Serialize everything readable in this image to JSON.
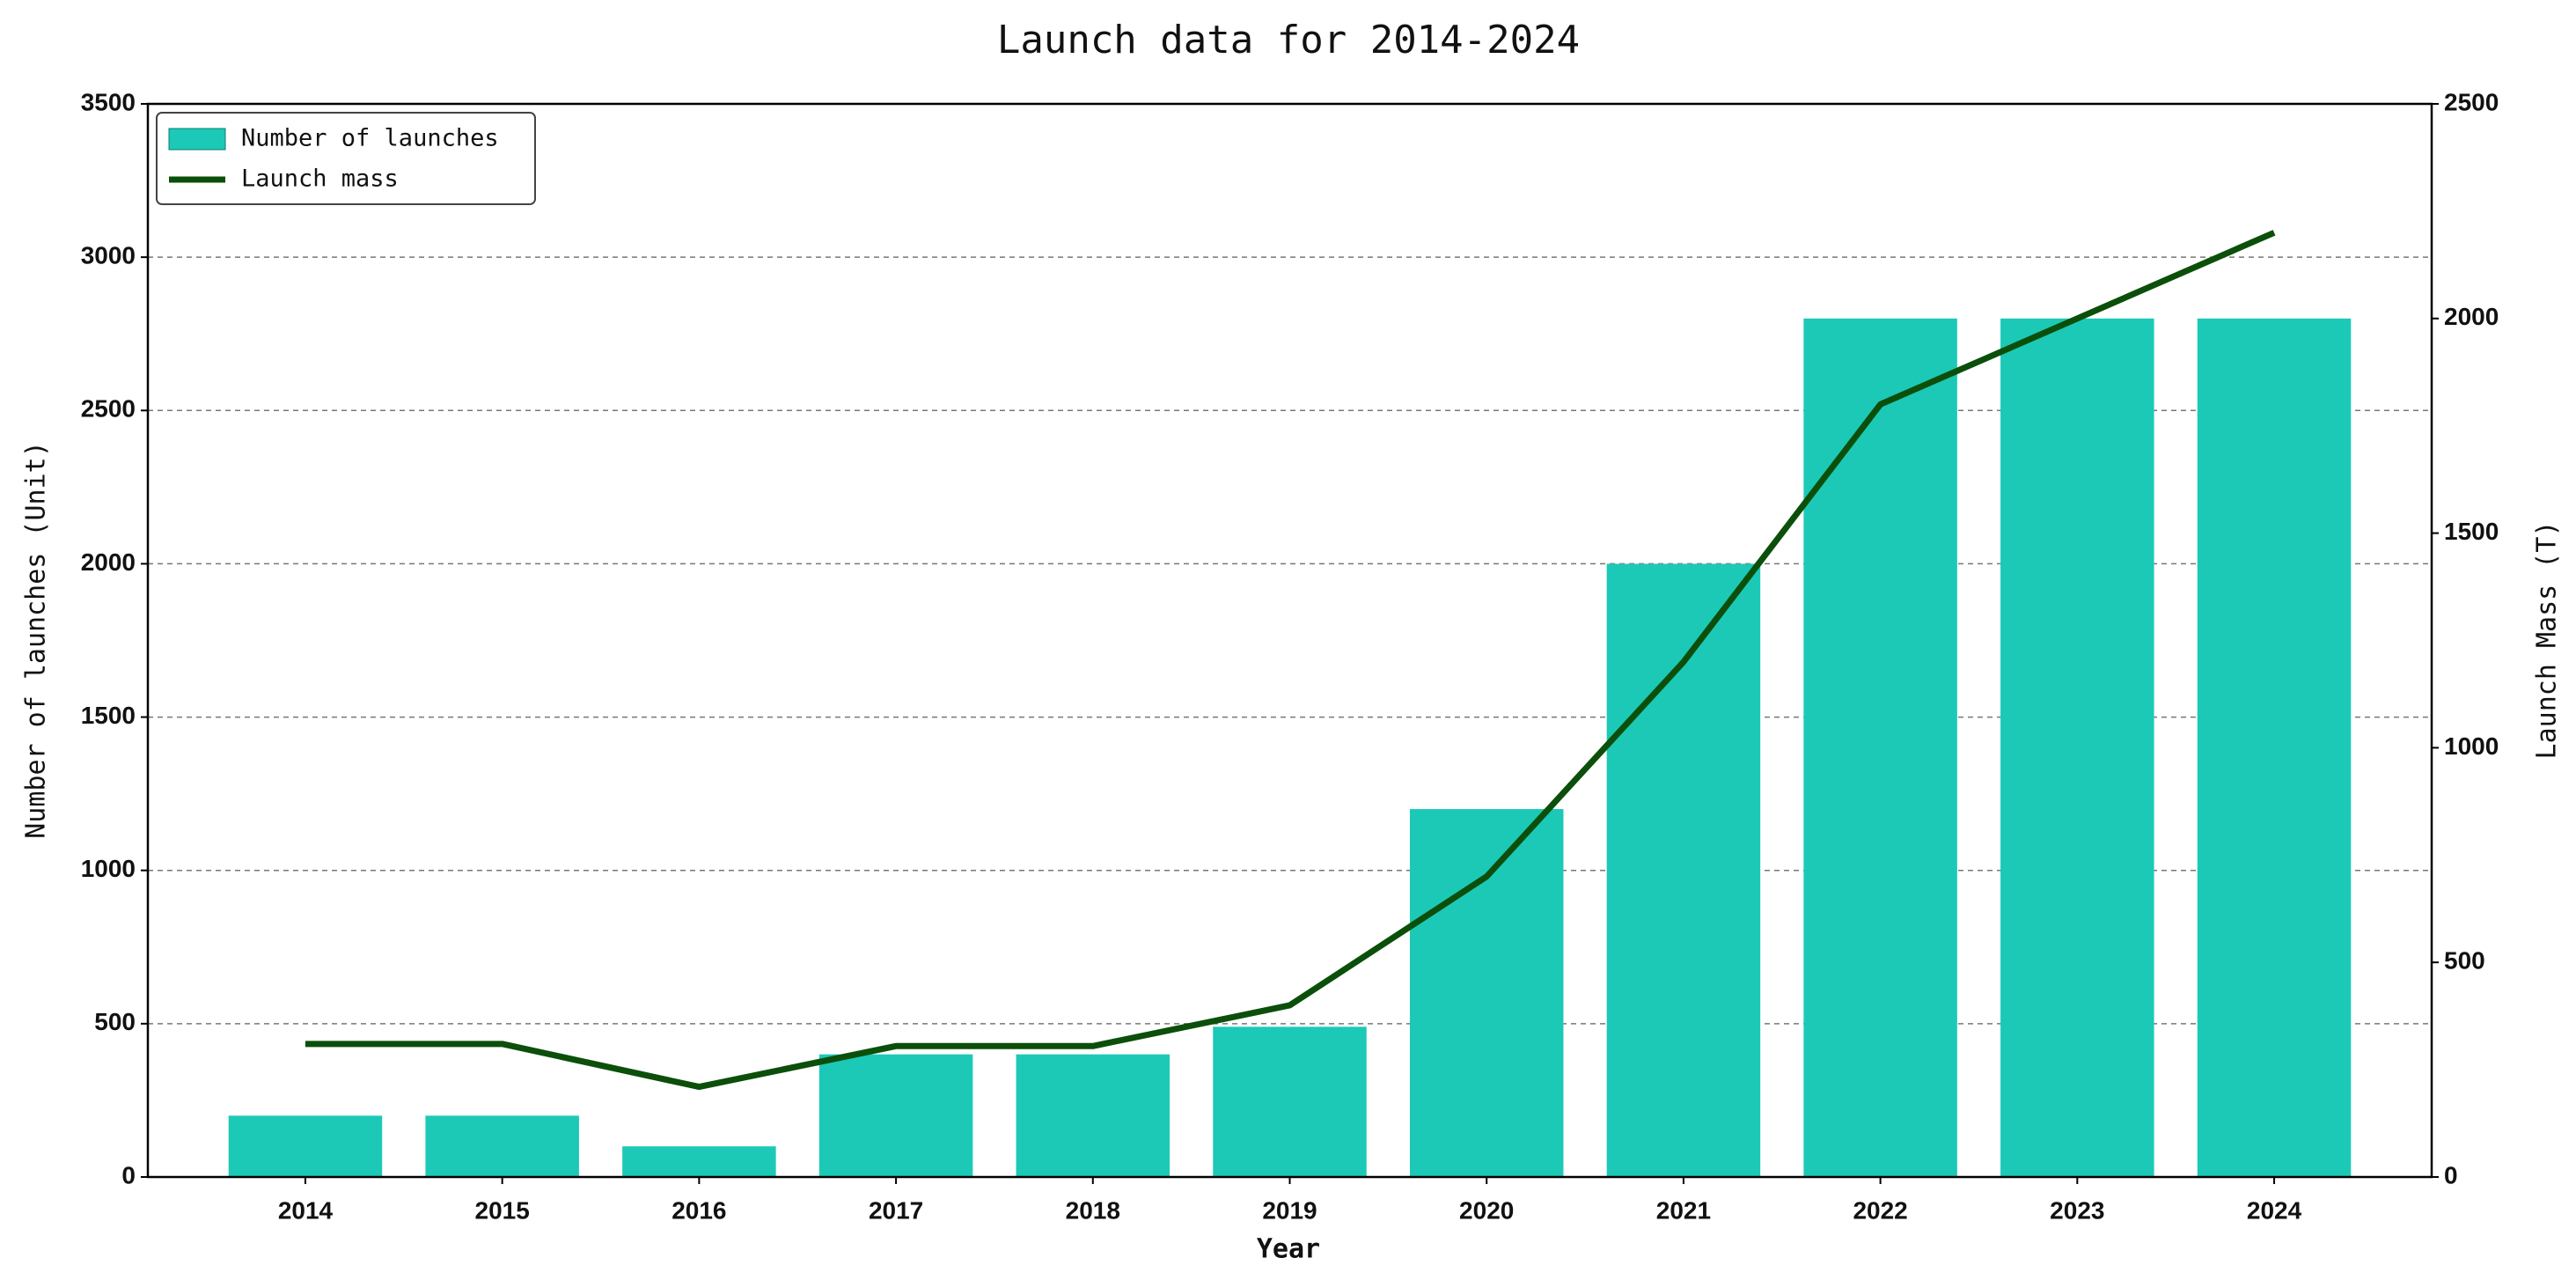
{
  "chart_data": {
    "type": "bar",
    "title": "Launch data for 2014-2024",
    "x_label": "Year",
    "y_label": "Number of launches (Unit)",
    "y2_label": "Launch Mass (T)",
    "categories": [
      "2014",
      "2015",
      "2016",
      "2017",
      "2018",
      "2019",
      "2020",
      "2021",
      "2022",
      "2023",
      "2024"
    ],
    "series": [
      {
        "name": "Number of launches",
        "type": "bar",
        "color": "#1cc9b7",
        "values": [
          200,
          200,
          100,
          400,
          400,
          490,
          1200,
          2000,
          2800,
          2800,
          2800
        ]
      },
      {
        "name": "Launch mass",
        "type": "line",
        "axis": "y2",
        "color": "#0b4f0b",
        "values": [
          310,
          310,
          210,
          305,
          305,
          400,
          700,
          1200,
          1800,
          2000,
          2200
        ]
      }
    ],
    "ylim": [
      0,
      3500
    ],
    "yticks": [
      0,
      500,
      1000,
      1500,
      2000,
      2500,
      3000,
      3500
    ],
    "y2lim": [
      0,
      2500
    ],
    "y2ticks": [
      0,
      500,
      1000,
      1500,
      2000,
      2500
    ],
    "grid": true,
    "legend": "upper-left"
  }
}
